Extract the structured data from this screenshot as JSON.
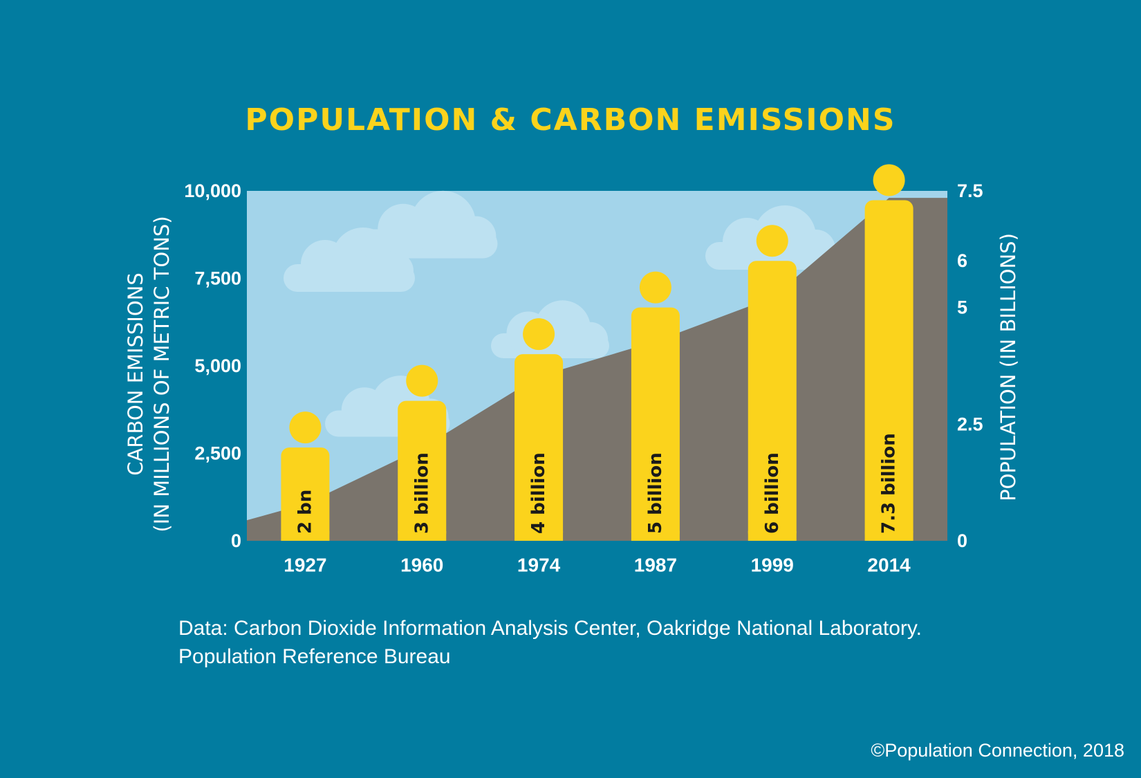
{
  "title": "POPULATION & CARBON EMISSIONS",
  "colors": {
    "background": "#027ca0",
    "sky": "#a3d4ea",
    "cloud": "#bde1f1",
    "emissions_area": "#7a746c",
    "population_figure": "#fbd31c",
    "title_text": "#fbd31c",
    "axis_text": "#ffffff"
  },
  "chart_data": {
    "type": "area",
    "categories": [
      "1927",
      "1960",
      "1974",
      "1987",
      "1999",
      "2014"
    ],
    "ylabel": "CARBON EMISSIONS (IN MILLIONS OF METRIC TONS)",
    "y2label": "POPULATION (IN BILLIONS)",
    "ylim": [
      0,
      10000
    ],
    "y2lim": [
      0,
      7.5
    ],
    "yticks": [
      "0",
      "2,500",
      "5,000",
      "7,500",
      "10,000"
    ],
    "y2ticks": [
      "0",
      "2.5",
      "5",
      "6",
      "7.5"
    ],
    "series": [
      {
        "values": [
          1050,
          2650,
          4700,
          5700,
          6950,
          9800
        ]
      },
      {
        "values": [
          2,
          3,
          4,
          5,
          6,
          7.3
        ],
        "labels": [
          "2 bn",
          "3 billion",
          "4 billion",
          "5 billion",
          "6 billion",
          "7.3 billion"
        ]
      }
    ]
  },
  "source": "Data: Carbon Dioxide Information Analysis Center, Oakridge National Laboratory. Population Reference Bureau",
  "copyright": "©Population Connection, 2018"
}
